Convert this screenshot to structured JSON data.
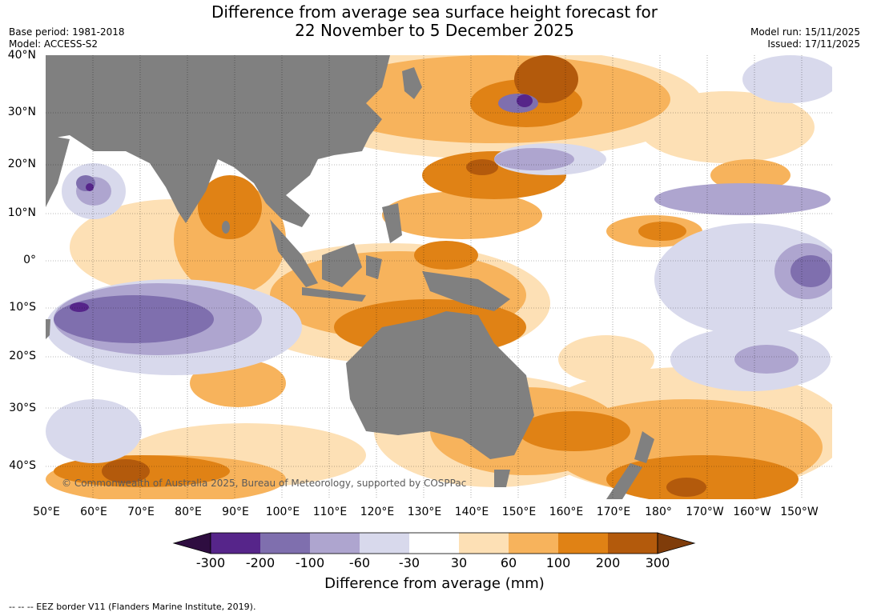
{
  "header": {
    "title_line1": "Difference from average sea surface height forecast for",
    "title_line2": "22 November to 5 December 2025",
    "base_period": "Base period: 1981-2018",
    "model": "Model: ACCESS-S2",
    "model_run": "Model run: 15/11/2025",
    "issued": "Issued: 17/11/2025"
  },
  "map": {
    "copyright": "© Commonwealth of Australia 2025, Bureau of Meteorology, supported by COSPPac",
    "lat_labels": [
      "40°N",
      "30°N",
      "20°N",
      "10°N",
      "0°",
      "10°S",
      "20°S",
      "30°S",
      "40°S"
    ],
    "lon_labels": [
      "50°E",
      "60°E",
      "70°E",
      "80°E",
      "90°E",
      "100°E",
      "110°E",
      "120°E",
      "130°E",
      "140°E",
      "150°E",
      "160°E",
      "170°E",
      "180°",
      "170°W",
      "160°W",
      "150°W"
    ],
    "land_color": "#808080",
    "ocean_neutral_color": "#ffffff"
  },
  "colorbar": {
    "ticks": [
      "-300",
      "-200",
      "-100",
      "-60",
      "-30",
      "30",
      "60",
      "100",
      "200",
      "300"
    ],
    "colors": [
      "#2e0d40",
      "#56258a",
      "#7f6fae",
      "#aea5cf",
      "#d8d9ec",
      "#ffffff",
      "#fde0b5",
      "#f7b35c",
      "#e08215",
      "#b35a0c",
      "#7f3c0a"
    ],
    "label": "Difference from average (mm)"
  },
  "footnote": "--  --  -- EEZ border V11 (Flanders Marine Institute, 2019)."
}
